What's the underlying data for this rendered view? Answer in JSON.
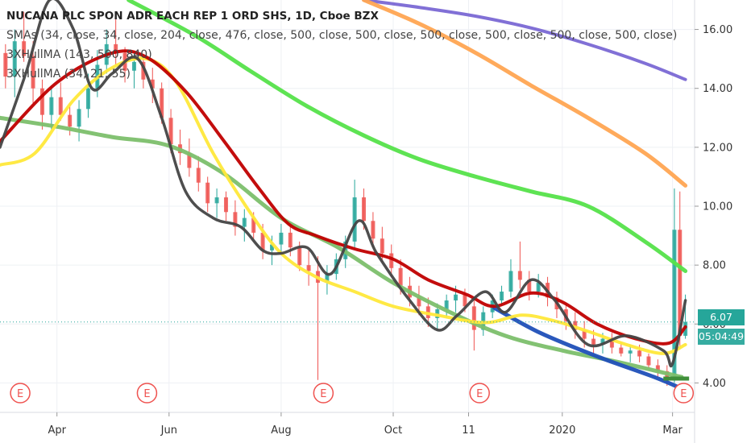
{
  "legend": {
    "title": "NUCANA PLC SPON ADR EACH REP 1 ORD SHS, 1D, Cboe BZX",
    "line2": "SMAs (34, close, 34, close, 204, close, 476, close, 500, close, 500, close, 500, close, 500, close, 500, close, 500, close)",
    "line3": "3XHullMA (143, 500, 840)",
    "line4": "3XHullMA (34, 21, 55)"
  },
  "price_tags": {
    "last": "6.07",
    "countdown": "05:04:49"
  },
  "colors": {
    "up": "#26a69a",
    "down": "#ef5350",
    "red": "#c00000",
    "yellow": "#ffe83a",
    "black": "#444444",
    "green": "#55e24a",
    "orange": "#ffa552",
    "purple": "#7a68d4",
    "olive": "#7cbf6b",
    "blue": "#1f4fb8",
    "earnings": "#ef5350"
  },
  "chart_data": {
    "type": "line",
    "title": "NUCANA PLC SPON ADR EACH REP 1 ORD SHS, 1D, Cboe BZX",
    "x_ticks": [
      "Apr",
      "Jun",
      "Aug",
      "Oct",
      "11",
      "2020",
      "Mar"
    ],
    "y_ticks": [
      "4.00",
      "6.00",
      "8.00",
      "10.00",
      "12.00",
      "14.00",
      "16.00"
    ],
    "ylim": [
      3.0,
      17.0
    ],
    "xlim": [
      "2019-03-01",
      "2020-03-13"
    ],
    "grid": true,
    "earnings_markers": {
      "label": "E",
      "dates": [
        "2019-03-12",
        "2019-05-20",
        "2019-08-24",
        "2019-11-17",
        "2020-03-07"
      ]
    },
    "last_price": 6.07,
    "series": [
      {
        "color": "#7a68d4",
        "points": [
          [
            "2019-09-15",
            17.0
          ],
          [
            "2019-10-15",
            16.75
          ],
          [
            "2019-11-15",
            16.45
          ],
          [
            "2019-12-15",
            16.05
          ],
          [
            "2020-01-15",
            15.5
          ],
          [
            "2020-02-15",
            14.85
          ],
          [
            "2020-03-08",
            14.3
          ]
        ]
      },
      {
        "color": "#ffa552",
        "points": [
          [
            "2019-09-15",
            17.0
          ],
          [
            "2019-10-15",
            16.2
          ],
          [
            "2019-11-15",
            15.2
          ],
          [
            "2019-12-15",
            14.1
          ],
          [
            "2020-01-15",
            13.0
          ],
          [
            "2020-02-15",
            11.8
          ],
          [
            "2020-03-08",
            10.7
          ]
        ]
      },
      {
        "color": "#55e24a",
        "points": [
          [
            "2019-05-10",
            17.0
          ],
          [
            "2019-06-15",
            15.8
          ],
          [
            "2019-07-15",
            14.6
          ],
          [
            "2019-08-15",
            13.4
          ],
          [
            "2019-09-15",
            12.4
          ],
          [
            "2019-10-15",
            11.6
          ],
          [
            "2019-11-15",
            11.0
          ],
          [
            "2019-12-15",
            10.5
          ],
          [
            "2020-01-15",
            10.0
          ],
          [
            "2020-02-15",
            8.8
          ],
          [
            "2020-03-08",
            7.8
          ]
        ]
      },
      {
        "color": "#7cbf6b",
        "points": [
          [
            "2019-03-01",
            13.0
          ],
          [
            "2019-04-01",
            12.7
          ],
          [
            "2019-05-01",
            12.35
          ],
          [
            "2019-06-01",
            12.05
          ],
          [
            "2019-07-01",
            11.1
          ],
          [
            "2019-08-01",
            9.6
          ],
          [
            "2019-09-01",
            8.6
          ],
          [
            "2019-10-01",
            7.4
          ],
          [
            "2019-11-01",
            6.4
          ],
          [
            "2019-12-01",
            5.6
          ],
          [
            "2020-01-01",
            5.1
          ],
          [
            "2020-02-01",
            4.7
          ],
          [
            "2020-03-06",
            4.2
          ]
        ]
      },
      {
        "color": "#1f4fb8",
        "points": [
          [
            "2019-11-25",
            6.55
          ],
          [
            "2019-12-20",
            5.7
          ],
          [
            "2020-01-20",
            4.9
          ],
          [
            "2020-02-20",
            4.2
          ],
          [
            "2020-03-08",
            3.75
          ]
        ]
      },
      {
        "color": "#ffe83a",
        "points": [
          [
            "2019-03-01",
            11.4
          ],
          [
            "2019-03-20",
            11.8
          ],
          [
            "2019-04-10",
            13.6
          ],
          [
            "2019-05-01",
            14.7
          ],
          [
            "2019-05-20",
            15.0
          ],
          [
            "2019-06-05",
            14.2
          ],
          [
            "2019-06-25",
            11.8
          ],
          [
            "2019-07-15",
            9.8
          ],
          [
            "2019-08-01",
            8.4
          ],
          [
            "2019-08-20",
            7.6
          ],
          [
            "2019-09-10",
            7.1
          ],
          [
            "2019-10-01",
            6.6
          ],
          [
            "2019-10-25",
            6.3
          ],
          [
            "2019-11-20",
            6.05
          ],
          [
            "2019-12-10",
            6.3
          ],
          [
            "2019-12-28",
            6.1
          ],
          [
            "2020-01-15",
            5.75
          ],
          [
            "2020-02-05",
            5.3
          ],
          [
            "2020-02-25",
            5.0
          ],
          [
            "2020-03-08",
            5.3
          ]
        ]
      },
      {
        "color": "#c00000",
        "points": [
          [
            "2019-03-01",
            12.2
          ],
          [
            "2019-04-01",
            14.2
          ],
          [
            "2019-05-01",
            15.2
          ],
          [
            "2019-05-20",
            15.05
          ],
          [
            "2019-06-10",
            13.9
          ],
          [
            "2019-07-01",
            12.2
          ],
          [
            "2019-07-20",
            10.6
          ],
          [
            "2019-08-05",
            9.4
          ],
          [
            "2019-08-20",
            9.0
          ],
          [
            "2019-09-10",
            8.55
          ],
          [
            "2019-10-01",
            8.2
          ],
          [
            "2019-10-20",
            7.5
          ],
          [
            "2019-11-10",
            7.0
          ],
          [
            "2019-11-25",
            6.6
          ],
          [
            "2019-12-15",
            7.05
          ],
          [
            "2020-01-01",
            6.75
          ],
          [
            "2020-01-20",
            6.0
          ],
          [
            "2020-02-10",
            5.5
          ],
          [
            "2020-02-28",
            5.35
          ],
          [
            "2020-03-08",
            5.9
          ]
        ]
      },
      {
        "color": "#444444",
        "points": [
          [
            "2019-03-01",
            12.0
          ],
          [
            "2019-03-15",
            14.5
          ],
          [
            "2019-03-28",
            17.0
          ],
          [
            "2019-04-10",
            16.0
          ],
          [
            "2019-04-20",
            14.0
          ],
          [
            "2019-05-01",
            14.5
          ],
          [
            "2019-05-15",
            15.0
          ],
          [
            "2019-05-28",
            13.0
          ],
          [
            "2019-06-10",
            10.5
          ],
          [
            "2019-06-25",
            9.6
          ],
          [
            "2019-07-10",
            9.3
          ],
          [
            "2019-07-22",
            8.5
          ],
          [
            "2019-08-01",
            8.4
          ],
          [
            "2019-08-15",
            8.6
          ],
          [
            "2019-08-28",
            7.7
          ],
          [
            "2019-09-12",
            9.5
          ],
          [
            "2019-09-22",
            8.4
          ],
          [
            "2019-10-10",
            6.8
          ],
          [
            "2019-10-25",
            5.8
          ],
          [
            "2019-11-05",
            6.3
          ],
          [
            "2019-11-20",
            7.1
          ],
          [
            "2019-12-01",
            6.4
          ],
          [
            "2019-12-15",
            7.5
          ],
          [
            "2019-12-28",
            6.8
          ],
          [
            "2020-01-15",
            5.3
          ],
          [
            "2020-02-05",
            5.6
          ],
          [
            "2020-02-25",
            5.1
          ],
          [
            "2020-03-01",
            4.65
          ],
          [
            "2020-03-08",
            6.8
          ]
        ]
      }
    ],
    "candles": [
      [
        "2019-03-04",
        15.2,
        15.5,
        14.0,
        14.4
      ],
      [
        "2019-03-09",
        14.4,
        16.0,
        13.7,
        15.6
      ],
      [
        "2019-03-14",
        15.6,
        16.6,
        14.9,
        15.1
      ],
      [
        "2019-03-19",
        15.1,
        15.6,
        13.5,
        14.0
      ],
      [
        "2019-03-24",
        14.0,
        14.3,
        12.6,
        13.1
      ],
      [
        "2019-03-29",
        13.1,
        14.1,
        12.6,
        13.7
      ],
      [
        "2019-04-03",
        13.7,
        14.2,
        12.9,
        13.1
      ],
      [
        "2019-04-08",
        13.1,
        13.5,
        12.4,
        12.7
      ],
      [
        "2019-04-13",
        12.7,
        13.6,
        12.2,
        13.3
      ],
      [
        "2019-04-18",
        13.3,
        14.5,
        13.0,
        14.0
      ],
      [
        "2019-04-23",
        14.0,
        15.3,
        13.7,
        14.8
      ],
      [
        "2019-04-28",
        14.8,
        16.0,
        14.5,
        15.5
      ],
      [
        "2019-05-03",
        15.5,
        16.5,
        14.8,
        15.2
      ],
      [
        "2019-05-08",
        15.2,
        15.4,
        14.2,
        14.6
      ],
      [
        "2019-05-13",
        14.6,
        15.2,
        14.0,
        14.9
      ],
      [
        "2019-05-18",
        14.9,
        15.0,
        14.0,
        14.3
      ],
      [
        "2019-05-23",
        14.3,
        14.7,
        13.5,
        14.0
      ],
      [
        "2019-05-28",
        14.0,
        14.2,
        12.8,
        13.0
      ],
      [
        "2019-06-02",
        13.0,
        13.3,
        11.8,
        12.1
      ],
      [
        "2019-06-07",
        12.1,
        12.6,
        11.4,
        11.8
      ],
      [
        "2019-06-12",
        11.8,
        12.3,
        11.0,
        11.3
      ],
      [
        "2019-06-17",
        11.3,
        11.7,
        10.5,
        10.8
      ],
      [
        "2019-06-22",
        10.8,
        11.0,
        9.8,
        10.1
      ],
      [
        "2019-06-27",
        10.1,
        10.6,
        9.6,
        10.3
      ],
      [
        "2019-07-02",
        10.3,
        10.5,
        9.5,
        9.8
      ],
      [
        "2019-07-07",
        9.8,
        10.2,
        9.0,
        9.3
      ],
      [
        "2019-07-12",
        9.3,
        9.9,
        8.8,
        9.6
      ],
      [
        "2019-07-17",
        9.6,
        9.8,
        8.9,
        9.1
      ],
      [
        "2019-07-22",
        9.1,
        9.4,
        8.2,
        8.5
      ],
      [
        "2019-07-27",
        8.5,
        9.0,
        8.0,
        8.7
      ],
      [
        "2019-08-01",
        8.7,
        9.4,
        8.4,
        9.1
      ],
      [
        "2019-08-06",
        9.1,
        9.4,
        8.3,
        8.6
      ],
      [
        "2019-08-11",
        8.6,
        8.8,
        7.8,
        8.0
      ],
      [
        "2019-08-16",
        8.0,
        8.5,
        7.3,
        7.8
      ],
      [
        "2019-08-21",
        7.8,
        8.3,
        4.1,
        7.4
      ],
      [
        "2019-08-26",
        7.4,
        8.0,
        7.0,
        7.7
      ],
      [
        "2019-08-31",
        7.7,
        8.4,
        7.5,
        8.2
      ],
      [
        "2019-09-05",
        8.2,
        9.0,
        7.9,
        8.8
      ],
      [
        "2019-09-10",
        8.8,
        10.9,
        8.6,
        10.3
      ],
      [
        "2019-09-15",
        10.3,
        10.6,
        9.2,
        9.5
      ],
      [
        "2019-09-20",
        9.5,
        9.8,
        8.6,
        8.9
      ],
      [
        "2019-09-25",
        8.9,
        9.3,
        8.1,
        8.4
      ],
      [
        "2019-09-30",
        8.4,
        8.7,
        7.6,
        7.9
      ],
      [
        "2019-10-05",
        7.9,
        8.2,
        7.0,
        7.3
      ],
      [
        "2019-10-10",
        7.3,
        7.6,
        6.6,
        6.9
      ],
      [
        "2019-10-15",
        6.9,
        7.3,
        6.3,
        6.6
      ],
      [
        "2019-10-20",
        6.6,
        6.9,
        5.9,
        6.2
      ],
      [
        "2019-10-25",
        6.2,
        6.7,
        5.8,
        6.5
      ],
      [
        "2019-10-30",
        6.5,
        7.0,
        6.2,
        6.8
      ],
      [
        "2019-11-04",
        6.8,
        7.3,
        6.4,
        7.0
      ],
      [
        "2019-11-09",
        7.0,
        7.2,
        6.4,
        6.6
      ],
      [
        "2019-11-14",
        6.6,
        6.8,
        5.1,
        5.8
      ],
      [
        "2019-11-19",
        5.8,
        6.6,
        5.6,
        6.4
      ],
      [
        "2019-11-24",
        6.4,
        7.0,
        6.2,
        6.8
      ],
      [
        "2019-11-29",
        6.8,
        7.3,
        6.6,
        7.1
      ],
      [
        "2019-12-04",
        7.1,
        8.2,
        6.9,
        7.8
      ],
      [
        "2019-12-09",
        7.8,
        8.8,
        7.2,
        7.5
      ],
      [
        "2019-12-14",
        7.5,
        7.8,
        6.8,
        7.1
      ],
      [
        "2019-12-19",
        7.1,
        7.7,
        6.9,
        7.4
      ],
      [
        "2019-12-24",
        7.4,
        7.6,
        6.6,
        6.9
      ],
      [
        "2019-12-29",
        6.9,
        7.1,
        6.2,
        6.5
      ],
      [
        "2020-01-03",
        6.5,
        6.7,
        5.8,
        6.1
      ],
      [
        "2020-01-08",
        6.1,
        6.4,
        5.5,
        5.8
      ],
      [
        "2020-01-13",
        5.8,
        6.1,
        5.2,
        5.5
      ],
      [
        "2020-01-18",
        5.5,
        5.8,
        5.0,
        5.3
      ],
      [
        "2020-01-23",
        5.3,
        5.7,
        5.0,
        5.5
      ],
      [
        "2020-01-28",
        5.5,
        5.7,
        5.0,
        5.2
      ],
      [
        "2020-02-02",
        5.2,
        5.4,
        4.9,
        5.0
      ],
      [
        "2020-02-07",
        5.0,
        5.3,
        4.7,
        5.1
      ],
      [
        "2020-02-12",
        5.1,
        5.3,
        4.7,
        4.9
      ],
      [
        "2020-02-17",
        4.9,
        5.0,
        4.5,
        4.6
      ],
      [
        "2020-02-22",
        4.6,
        4.8,
        4.2,
        4.4
      ],
      [
        "2020-02-27",
        4.4,
        4.6,
        3.9,
        4.1
      ],
      [
        "2020-03-02",
        4.1,
        10.6,
        4.0,
        9.2
      ],
      [
        "2020-03-05",
        9.2,
        10.5,
        5.2,
        5.6
      ],
      [
        "2020-03-08",
        5.6,
        7.0,
        5.5,
        6.07
      ]
    ]
  }
}
